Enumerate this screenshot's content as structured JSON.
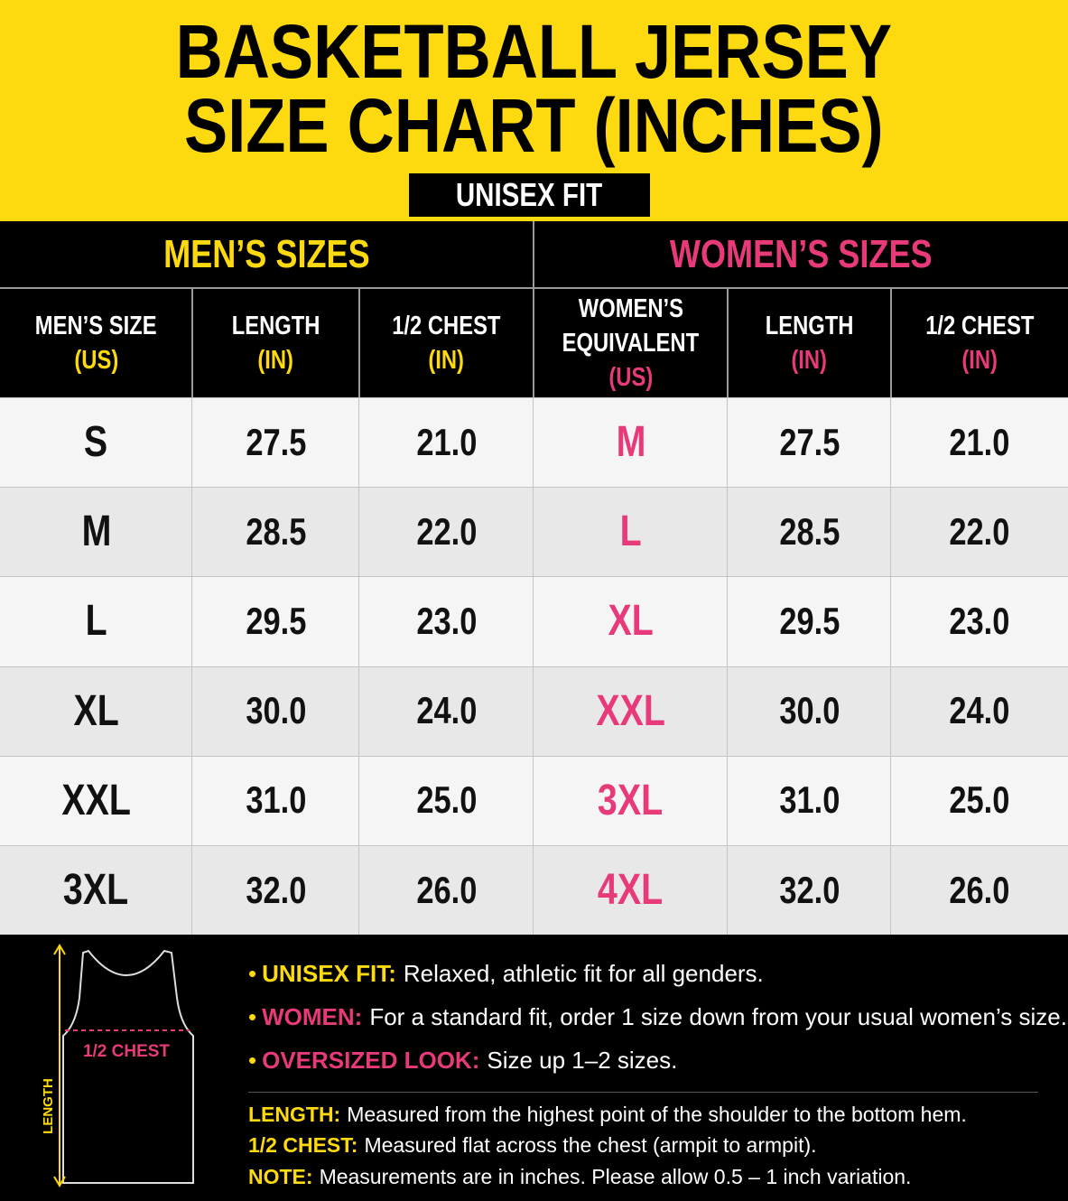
{
  "header": {
    "title_lines": [
      "BASKETBALL JERSEY",
      "SIZE CHART (INCHES)"
    ],
    "badge": "UNISEX FIT"
  },
  "table": {
    "groups": [
      "MEN’S SIZES",
      "WOMEN’S SIZES"
    ],
    "columns": [
      {
        "label_lines": [
          "MEN’S SIZE"
        ],
        "unit": "(US)"
      },
      {
        "label_lines": [
          "LENGTH"
        ],
        "unit": "(IN)"
      },
      {
        "label_lines": [
          "1/2 CHEST"
        ],
        "unit": "(IN)"
      },
      {
        "label_lines": [
          "WOMEN’S",
          "EQUIVALENT"
        ],
        "unit": "(US)"
      },
      {
        "label_lines": [
          "LENGTH"
        ],
        "unit": "(IN)"
      },
      {
        "label_lines": [
          "1/2 CHEST"
        ],
        "unit": "(IN)"
      }
    ],
    "rows": [
      [
        "S",
        "27.5",
        "21.0",
        "M",
        "27.5",
        "21.0"
      ],
      [
        "M",
        "28.5",
        "22.0",
        "L",
        "28.5",
        "22.0"
      ],
      [
        "L",
        "29.5",
        "23.0",
        "XL",
        "29.5",
        "23.0"
      ],
      [
        "XL",
        "30.0",
        "24.0",
        "XXL",
        "30.0",
        "24.0"
      ],
      [
        "XXL",
        "31.0",
        "25.0",
        "3XL",
        "31.0",
        "25.0"
      ],
      [
        "3XL",
        "32.0",
        "26.0",
        "4XL",
        "32.0",
        "26.0"
      ]
    ]
  },
  "diagram": {
    "chest_label": "1/2 CHEST",
    "length_label": "LENGTH"
  },
  "notes": [
    {
      "key": "UNISEX FIT:",
      "text": "Relaxed, athletic fit for all genders."
    },
    {
      "key": "WOMEN:",
      "text": "For a standard fit, order 1 size down from your usual women’s size."
    },
    {
      "key": "OVERSIZED LOOK:",
      "text": "Size up 1–2 sizes."
    }
  ],
  "definitions": [
    {
      "key": "LENGTH:",
      "text": "Measured from the highest point of the shoulder to the bottom hem."
    },
    {
      "key": "1/2 CHEST:",
      "text": "Measured flat across the chest (armpit to armpit)."
    },
    {
      "key": "NOTE:",
      "text": "Measurements are in inches. Please allow 0.5 – 1 inch variation."
    }
  ]
}
